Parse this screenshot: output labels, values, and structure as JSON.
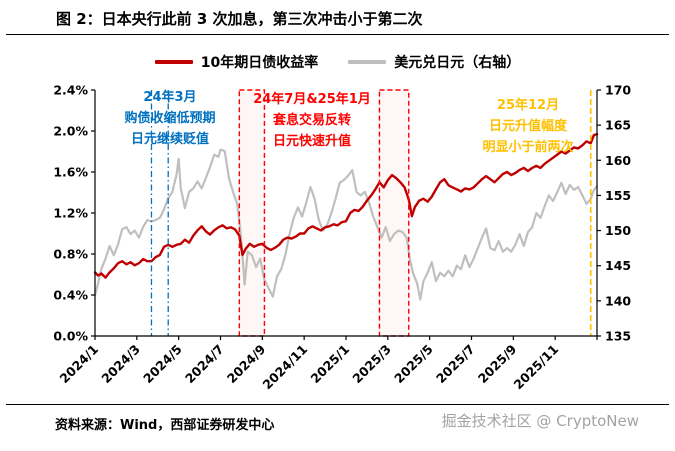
{
  "header": {
    "title": "图 2：日本央行此前 3 次加息，第三次冲击小于第二次"
  },
  "legend": {
    "items": [
      {
        "label": "10年期日债收益率",
        "color": "#c00000"
      },
      {
        "label": "美元兑日元（右轴）",
        "color": "#bfbfbf"
      }
    ]
  },
  "footer": {
    "source": "资料来源：Wind，西部证券研发中心",
    "watermark": "掘金技术社区 @ CryptoNew"
  },
  "chart_data": {
    "type": "line",
    "title": "日本央行此前3次加息，第三次冲击小于第二次",
    "x_range": [
      0,
      24
    ],
    "x_ticks": {
      "months": [
        0,
        2,
        4,
        6,
        8,
        10,
        12,
        14,
        16,
        18,
        20,
        22
      ],
      "labels": [
        "2024/1",
        "2024/3",
        "2024/5",
        "2024/7",
        "2024/9",
        "2024/11",
        "2025/1",
        "2025/3",
        "2025/5",
        "2025/7",
        "2025/9",
        "2025/11"
      ]
    },
    "left_axis": {
      "min": 0.0,
      "max": 2.4,
      "tick_labels": [
        "0.0%",
        "0.4%",
        "0.8%",
        "1.2%",
        "1.6%",
        "2.0%",
        "2.4%"
      ]
    },
    "right_axis": {
      "min": 135,
      "max": 170,
      "tick_labels": [
        "135",
        "140",
        "145",
        "150",
        "155",
        "160",
        "165",
        "170"
      ]
    },
    "series": [
      {
        "name": "美元兑日元（右轴）",
        "axis": "right",
        "color": "#bfbfbf",
        "width": 2.2,
        "points": [
          [
            0,
            140.8
          ],
          [
            0.15,
            142.5
          ],
          [
            0.3,
            144.5
          ],
          [
            0.5,
            146.0
          ],
          [
            0.7,
            147.8
          ],
          [
            0.9,
            146.5
          ],
          [
            1.1,
            148.0
          ],
          [
            1.3,
            150.2
          ],
          [
            1.5,
            150.5
          ],
          [
            1.7,
            149.5
          ],
          [
            1.9,
            150.0
          ],
          [
            2.1,
            149.0
          ],
          [
            2.3,
            150.5
          ],
          [
            2.5,
            151.5
          ],
          [
            2.7,
            151.3
          ],
          [
            2.9,
            151.5
          ],
          [
            3.1,
            151.8
          ],
          [
            3.3,
            153.0
          ],
          [
            3.5,
            154.6
          ],
          [
            3.7,
            155.5
          ],
          [
            3.9,
            158.0
          ],
          [
            4.0,
            160.2
          ],
          [
            4.1,
            156.0
          ],
          [
            4.3,
            153.2
          ],
          [
            4.5,
            155.5
          ],
          [
            4.7,
            156.0
          ],
          [
            4.9,
            157.0
          ],
          [
            5.1,
            156.0
          ],
          [
            5.3,
            157.5
          ],
          [
            5.5,
            159.0
          ],
          [
            5.7,
            160.8
          ],
          [
            5.9,
            160.5
          ],
          [
            6.0,
            161.5
          ],
          [
            6.2,
            161.3
          ],
          [
            6.4,
            157.5
          ],
          [
            6.6,
            155.5
          ],
          [
            6.8,
            153.8
          ],
          [
            6.95,
            150.0
          ],
          [
            7.1,
            144.5
          ],
          [
            7.15,
            142.3
          ],
          [
            7.3,
            147.0
          ],
          [
            7.5,
            146.5
          ],
          [
            7.7,
            144.8
          ],
          [
            7.9,
            146.0
          ],
          [
            8.1,
            143.0
          ],
          [
            8.3,
            141.8
          ],
          [
            8.5,
            140.6
          ],
          [
            8.7,
            143.5
          ],
          [
            8.9,
            144.5
          ],
          [
            9.1,
            146.5
          ],
          [
            9.3,
            149.5
          ],
          [
            9.5,
            151.8
          ],
          [
            9.7,
            153.3
          ],
          [
            9.9,
            152.0
          ],
          [
            10.1,
            154.0
          ],
          [
            10.3,
            156.2
          ],
          [
            10.5,
            154.5
          ],
          [
            10.7,
            151.5
          ],
          [
            10.9,
            150.0
          ],
          [
            11.1,
            150.8
          ],
          [
            11.3,
            152.5
          ],
          [
            11.5,
            154.5
          ],
          [
            11.7,
            156.8
          ],
          [
            11.9,
            157.2
          ],
          [
            12.1,
            157.8
          ],
          [
            12.3,
            158.6
          ],
          [
            12.5,
            155.5
          ],
          [
            12.7,
            155.0
          ],
          [
            12.9,
            155.5
          ],
          [
            13.1,
            154.0
          ],
          [
            13.3,
            152.0
          ],
          [
            13.5,
            150.5
          ],
          [
            13.7,
            149.0
          ],
          [
            13.9,
            150.5
          ],
          [
            14.1,
            148.5
          ],
          [
            14.3,
            149.5
          ],
          [
            14.5,
            150.0
          ],
          [
            14.7,
            149.8
          ],
          [
            14.9,
            149.0
          ],
          [
            15.05,
            146.0
          ],
          [
            15.2,
            144.0
          ],
          [
            15.4,
            142.5
          ],
          [
            15.55,
            140.2
          ],
          [
            15.7,
            142.8
          ],
          [
            15.9,
            144.0
          ],
          [
            16.1,
            145.5
          ],
          [
            16.3,
            142.8
          ],
          [
            16.5,
            144.0
          ],
          [
            16.7,
            143.5
          ],
          [
            16.9,
            144.3
          ],
          [
            17.1,
            143.5
          ],
          [
            17.3,
            145.0
          ],
          [
            17.5,
            144.5
          ],
          [
            17.7,
            146.5
          ],
          [
            17.9,
            144.8
          ],
          [
            18.1,
            146.0
          ],
          [
            18.3,
            147.5
          ],
          [
            18.5,
            149.0
          ],
          [
            18.7,
            150.3
          ],
          [
            18.9,
            147.5
          ],
          [
            19.1,
            147.2
          ],
          [
            19.3,
            148.5
          ],
          [
            19.5,
            147.0
          ],
          [
            19.7,
            147.5
          ],
          [
            19.9,
            147.0
          ],
          [
            20.1,
            148.0
          ],
          [
            20.3,
            149.5
          ],
          [
            20.5,
            147.8
          ],
          [
            20.7,
            149.8
          ],
          [
            20.9,
            150.5
          ],
          [
            21.1,
            152.5
          ],
          [
            21.3,
            151.8
          ],
          [
            21.5,
            153.5
          ],
          [
            21.7,
            155.0
          ],
          [
            21.9,
            154.2
          ],
          [
            22.1,
            155.5
          ],
          [
            22.3,
            156.8
          ],
          [
            22.5,
            155.2
          ],
          [
            22.7,
            156.5
          ],
          [
            22.9,
            155.8
          ],
          [
            23.1,
            156.2
          ],
          [
            23.3,
            155.0
          ],
          [
            23.5,
            153.8
          ],
          [
            23.7,
            154.5
          ],
          [
            23.85,
            155.8
          ],
          [
            24,
            156.3
          ]
        ]
      },
      {
        "name": "10年期日债收益率",
        "axis": "left",
        "color": "#c00000",
        "width": 2.4,
        "points": [
          [
            0,
            0.62
          ],
          [
            0.15,
            0.59
          ],
          [
            0.3,
            0.61
          ],
          [
            0.5,
            0.57
          ],
          [
            0.7,
            0.62
          ],
          [
            0.9,
            0.66
          ],
          [
            1.1,
            0.71
          ],
          [
            1.3,
            0.73
          ],
          [
            1.5,
            0.7
          ],
          [
            1.7,
            0.72
          ],
          [
            1.9,
            0.69
          ],
          [
            2.1,
            0.71
          ],
          [
            2.3,
            0.75
          ],
          [
            2.5,
            0.73
          ],
          [
            2.7,
            0.73
          ],
          [
            2.9,
            0.77
          ],
          [
            3.1,
            0.79
          ],
          [
            3.3,
            0.87
          ],
          [
            3.5,
            0.89
          ],
          [
            3.7,
            0.87
          ],
          [
            3.9,
            0.89
          ],
          [
            4.1,
            0.9
          ],
          [
            4.3,
            0.94
          ],
          [
            4.5,
            0.91
          ],
          [
            4.7,
            0.98
          ],
          [
            4.9,
            1.03
          ],
          [
            5.1,
            1.07
          ],
          [
            5.3,
            1.02
          ],
          [
            5.5,
            0.99
          ],
          [
            5.7,
            1.03
          ],
          [
            5.9,
            1.06
          ],
          [
            6.1,
            1.08
          ],
          [
            6.3,
            1.05
          ],
          [
            6.5,
            1.06
          ],
          [
            6.7,
            1.04
          ],
          [
            6.9,
            0.98
          ],
          [
            7.05,
            0.79
          ],
          [
            7.2,
            0.85
          ],
          [
            7.4,
            0.9
          ],
          [
            7.6,
            0.87
          ],
          [
            7.8,
            0.89
          ],
          [
            8.0,
            0.9
          ],
          [
            8.2,
            0.86
          ],
          [
            8.4,
            0.84
          ],
          [
            8.6,
            0.86
          ],
          [
            8.8,
            0.89
          ],
          [
            9.0,
            0.94
          ],
          [
            9.2,
            0.96
          ],
          [
            9.4,
            0.95
          ],
          [
            9.6,
            0.97
          ],
          [
            9.8,
            1.0
          ],
          [
            10.0,
            1.0
          ],
          [
            10.2,
            1.05
          ],
          [
            10.4,
            1.07
          ],
          [
            10.6,
            1.05
          ],
          [
            10.8,
            1.03
          ],
          [
            11.0,
            1.06
          ],
          [
            11.2,
            1.07
          ],
          [
            11.4,
            1.09
          ],
          [
            11.6,
            1.08
          ],
          [
            11.8,
            1.11
          ],
          [
            12.0,
            1.12
          ],
          [
            12.2,
            1.2
          ],
          [
            12.4,
            1.23
          ],
          [
            12.6,
            1.22
          ],
          [
            12.8,
            1.26
          ],
          [
            13.0,
            1.32
          ],
          [
            13.2,
            1.37
          ],
          [
            13.4,
            1.43
          ],
          [
            13.6,
            1.5
          ],
          [
            13.8,
            1.45
          ],
          [
            14.0,
            1.52
          ],
          [
            14.2,
            1.57
          ],
          [
            14.4,
            1.54
          ],
          [
            14.6,
            1.5
          ],
          [
            14.8,
            1.45
          ],
          [
            15.0,
            1.33
          ],
          [
            15.15,
            1.17
          ],
          [
            15.3,
            1.26
          ],
          [
            15.5,
            1.32
          ],
          [
            15.7,
            1.34
          ],
          [
            15.9,
            1.31
          ],
          [
            16.1,
            1.36
          ],
          [
            16.3,
            1.43
          ],
          [
            16.5,
            1.5
          ],
          [
            16.7,
            1.53
          ],
          [
            16.9,
            1.47
          ],
          [
            17.1,
            1.45
          ],
          [
            17.3,
            1.43
          ],
          [
            17.5,
            1.41
          ],
          [
            17.7,
            1.44
          ],
          [
            17.9,
            1.43
          ],
          [
            18.1,
            1.45
          ],
          [
            18.3,
            1.49
          ],
          [
            18.5,
            1.53
          ],
          [
            18.7,
            1.56
          ],
          [
            18.9,
            1.53
          ],
          [
            19.1,
            1.5
          ],
          [
            19.3,
            1.54
          ],
          [
            19.5,
            1.58
          ],
          [
            19.7,
            1.6
          ],
          [
            19.9,
            1.57
          ],
          [
            20.1,
            1.59
          ],
          [
            20.3,
            1.62
          ],
          [
            20.5,
            1.64
          ],
          [
            20.7,
            1.61
          ],
          [
            20.9,
            1.64
          ],
          [
            21.1,
            1.66
          ],
          [
            21.3,
            1.64
          ],
          [
            21.5,
            1.68
          ],
          [
            21.7,
            1.71
          ],
          [
            21.9,
            1.74
          ],
          [
            22.1,
            1.77
          ],
          [
            22.3,
            1.8
          ],
          [
            22.5,
            1.78
          ],
          [
            22.7,
            1.81
          ],
          [
            22.9,
            1.84
          ],
          [
            23.1,
            1.83
          ],
          [
            23.3,
            1.86
          ],
          [
            23.5,
            1.9
          ],
          [
            23.7,
            1.88
          ],
          [
            23.85,
            1.96
          ],
          [
            24,
            1.97
          ]
        ]
      }
    ],
    "annotations": {
      "blue_dash_lines_x": [
        2.7,
        3.5
      ],
      "blue_color": "#0070c0",
      "red_dash_boxes_x": [
        [
          6.9,
          8.1
        ],
        [
          13.6,
          15.0
        ]
      ],
      "red_color": "#fe0000",
      "yellow_dash_line_x": 23.7,
      "yellow_color": "#ffc000",
      "texts": [
        {
          "id": "blue",
          "lines": [
            "24年3月",
            "购债收缩低预期",
            "日元继续贬值"
          ]
        },
        {
          "id": "red",
          "lines": [
            "24年7月&25年1月",
            "套息交易反转",
            "日元快速升值"
          ]
        },
        {
          "id": "yellow",
          "lines": [
            "25年12月",
            "日元升值幅度",
            "明显小于前两次"
          ]
        }
      ]
    }
  }
}
